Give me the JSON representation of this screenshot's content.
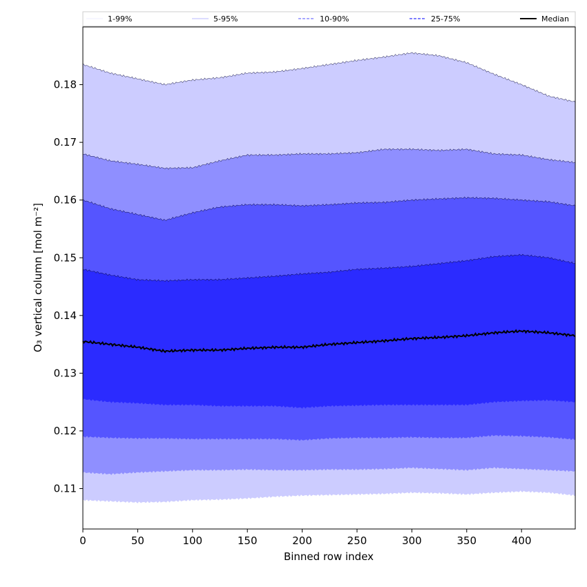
{
  "chart_data": {
    "type": "area",
    "xlabel": "Binned row index",
    "ylabel": "O₃ vertical column [mol m⁻²]",
    "xlim": [
      0,
      449
    ],
    "ylim": [
      0.103,
      0.19
    ],
    "x_ticks": [
      0,
      50,
      100,
      150,
      200,
      250,
      300,
      350,
      400
    ],
    "y_ticks": [
      0.11,
      0.12,
      0.13,
      0.14,
      0.15,
      0.16,
      0.17,
      0.18
    ],
    "grid": false,
    "legend_position": "top",
    "legend": [
      {
        "label": "1-99%",
        "style": "thin-solid",
        "color": "#e6e6ff"
      },
      {
        "label": "5-95%",
        "style": "thin-solid",
        "color": "#a0a0ff"
      },
      {
        "label": "10-90%",
        "style": "dashed",
        "color": "#8c8cff"
      },
      {
        "label": "25-75%",
        "style": "dashed",
        "color": "#5555ff"
      },
      {
        "label": "Median",
        "style": "thick-solid",
        "color": "#000000"
      }
    ],
    "x": [
      0,
      25,
      50,
      75,
      100,
      125,
      150,
      175,
      200,
      225,
      250,
      275,
      300,
      325,
      350,
      375,
      400,
      425,
      449
    ],
    "bands": [
      {
        "name": "1-99%",
        "color": "#ccccff",
        "upper": [
          0.1835,
          0.182,
          0.181,
          0.18,
          0.1808,
          0.1812,
          0.182,
          0.1822,
          0.1828,
          0.1835,
          0.1842,
          0.1848,
          0.1855,
          0.185,
          0.1838,
          0.1818,
          0.18,
          0.178,
          0.177
        ],
        "lower": [
          0.108,
          0.1078,
          0.1076,
          0.1077,
          0.108,
          0.1081,
          0.1083,
          0.1086,
          0.1088,
          0.1089,
          0.109,
          0.1091,
          0.1093,
          0.1092,
          0.109,
          0.1093,
          0.1095,
          0.1093,
          0.1088
        ]
      },
      {
        "name": "5-95%",
        "color": "#8f8fff",
        "upper": [
          0.168,
          0.1668,
          0.1662,
          0.1655,
          0.1656,
          0.1668,
          0.1678,
          0.1678,
          0.168,
          0.168,
          0.1682,
          0.1688,
          0.1688,
          0.1686,
          0.1688,
          0.168,
          0.1678,
          0.167,
          0.1665
        ],
        "lower": [
          0.1128,
          0.1125,
          0.1128,
          0.113,
          0.1132,
          0.1132,
          0.1133,
          0.1132,
          0.1132,
          0.1133,
          0.1133,
          0.1134,
          0.1136,
          0.1134,
          0.1132,
          0.1136,
          0.1134,
          0.1132,
          0.113
        ]
      },
      {
        "name": "10-90%",
        "color": "#5555ff",
        "upper": [
          0.16,
          0.1585,
          0.1575,
          0.1565,
          0.1578,
          0.1588,
          0.1592,
          0.1592,
          0.159,
          0.1592,
          0.1595,
          0.1596,
          0.16,
          0.1602,
          0.1604,
          0.1603,
          0.16,
          0.1597,
          0.159
        ],
        "lower": [
          0.119,
          0.1188,
          0.1187,
          0.1187,
          0.1186,
          0.1186,
          0.1186,
          0.1186,
          0.1184,
          0.1187,
          0.1188,
          0.1188,
          0.1189,
          0.1188,
          0.1188,
          0.1192,
          0.1191,
          0.1189,
          0.1185
        ]
      },
      {
        "name": "25-75%",
        "color": "#2b2bff",
        "upper": [
          0.148,
          0.147,
          0.1462,
          0.146,
          0.1462,
          0.1462,
          0.1465,
          0.1468,
          0.1472,
          0.1475,
          0.148,
          0.1482,
          0.1485,
          0.149,
          0.1495,
          0.1502,
          0.1505,
          0.15,
          0.149
        ],
        "lower": [
          0.1255,
          0.125,
          0.1248,
          0.1245,
          0.1245,
          0.1243,
          0.1243,
          0.1243,
          0.124,
          0.1243,
          0.1244,
          0.1245,
          0.1245,
          0.1245,
          0.1245,
          0.125,
          0.1252,
          0.1253,
          0.125
        ]
      }
    ],
    "series": [
      {
        "name": "Median",
        "color": "#000000",
        "values": [
          0.1355,
          0.135,
          0.1345,
          0.1338,
          0.134,
          0.134,
          0.1343,
          0.1345,
          0.1345,
          0.135,
          0.1353,
          0.1356,
          0.136,
          0.1362,
          0.1365,
          0.137,
          0.1373,
          0.137,
          0.1365
        ]
      }
    ]
  }
}
